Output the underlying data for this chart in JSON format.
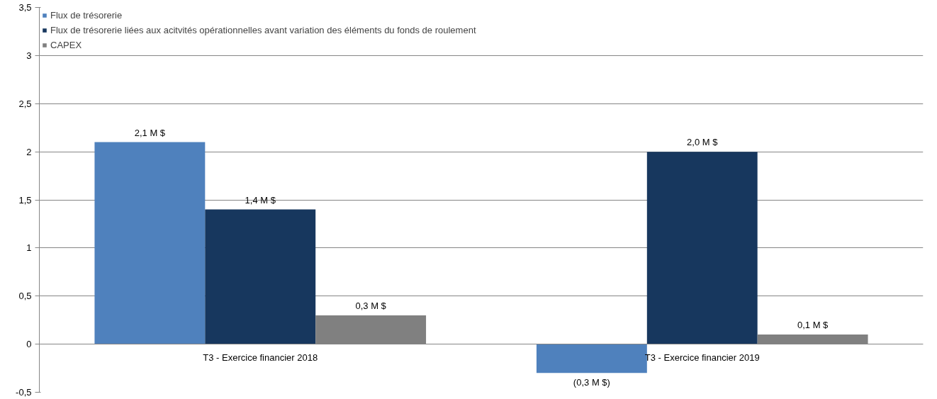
{
  "chart_data": {
    "type": "bar",
    "categories": [
      "T3 - Exercice financier 2018",
      "T3 - Exercice financier 2019"
    ],
    "series": [
      {
        "name": "Flux de trésorerie",
        "color": "#4f81bd",
        "values": [
          2.1,
          -0.3
        ],
        "value_labels": [
          "2,1 M $",
          "(0,3 M $)"
        ]
      },
      {
        "name": "Flux de trésorerie liées aux acitvités opérationnelles avant variation des éléments du fonds de roulement",
        "color": "#17375e",
        "values": [
          1.4,
          2.0
        ],
        "value_labels": [
          "1,4 M $",
          "2,0 M $"
        ]
      },
      {
        "name": "CAPEX",
        "color": "#808080",
        "values": [
          0.3,
          0.1
        ],
        "value_labels": [
          "0,3 M $",
          "0,1 M $"
        ]
      }
    ],
    "ylim": [
      -0.5,
      3.5
    ],
    "yticks": [
      {
        "value": -0.5,
        "label": "-0,5"
      },
      0,
      {
        "value": 0.5,
        "label": "0,5"
      },
      1,
      {
        "value": 1.5,
        "label": "1,5"
      },
      2,
      {
        "value": 2.5,
        "label": "2,5"
      },
      3,
      {
        "value": 3.5,
        "label": "3,5"
      }
    ],
    "grid": "y",
    "legend": "top left"
  }
}
